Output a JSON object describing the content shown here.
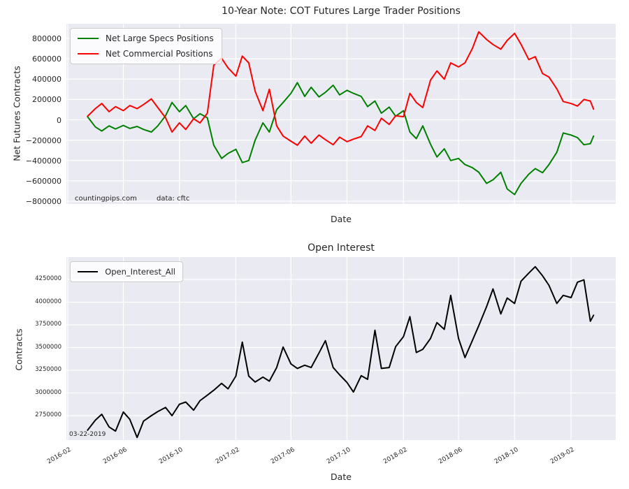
{
  "figure": {
    "background": "#ffffff",
    "plot_background": "#eaeaf2",
    "grid_color": "#ffffff",
    "text_color": "#262626"
  },
  "chart_data": [
    {
      "type": "line",
      "title": "10-Year Note: COT Futures Large Trader Positions",
      "xlabel": "Date",
      "ylabel": "Net Futures Contracts",
      "grid": true,
      "legend_position": "upper left",
      "ylim": [
        -824000,
        944000
      ],
      "xlim": [
        "2016-01-29",
        "2019-05-30"
      ],
      "annotations": [
        {
          "text": "countingpips.com"
        },
        {
          "text": "data: cftc"
        }
      ],
      "yticks": [
        {
          "value": 800000,
          "label": "800000"
        },
        {
          "value": 600000,
          "label": "600000"
        },
        {
          "value": 400000,
          "label": "400000"
        },
        {
          "value": 200000,
          "label": "200000"
        },
        {
          "value": 0,
          "label": "0"
        },
        {
          "value": -200000,
          "label": "−200000"
        },
        {
          "value": -400000,
          "label": "−400000"
        },
        {
          "value": -600000,
          "label": "−600000"
        },
        {
          "value": -800000,
          "label": "−800000"
        }
      ],
      "xticks": [
        {
          "date": "2016-02-01",
          "label": "2016-02"
        },
        {
          "date": "2016-06-01",
          "label": "2016-06"
        },
        {
          "date": "2016-10-01",
          "label": "2016-10"
        },
        {
          "date": "2017-02-01",
          "label": "2017-02"
        },
        {
          "date": "2017-06-01",
          "label": "2017-06"
        },
        {
          "date": "2017-10-01",
          "label": "2017-10"
        },
        {
          "date": "2018-02-01",
          "label": "2018-02"
        },
        {
          "date": "2018-06-01",
          "label": "2018-06"
        },
        {
          "date": "2018-10-01",
          "label": "2018-10"
        },
        {
          "date": "2019-02-01",
          "label": "2019-02"
        }
      ],
      "xtick_labels_visible": false,
      "x_dates": [
        "2016-03-15",
        "2016-04-01",
        "2016-04-15",
        "2016-05-01",
        "2016-05-15",
        "2016-06-01",
        "2016-06-15",
        "2016-07-01",
        "2016-07-15",
        "2016-08-01",
        "2016-08-15",
        "2016-09-01",
        "2016-09-15",
        "2016-10-01",
        "2016-10-15",
        "2016-11-01",
        "2016-11-15",
        "2016-12-01",
        "2016-12-15",
        "2017-01-01",
        "2017-01-15",
        "2017-02-01",
        "2017-02-15",
        "2017-03-01",
        "2017-03-15",
        "2017-04-01",
        "2017-04-15",
        "2017-05-01",
        "2017-05-15",
        "2017-06-01",
        "2017-06-15",
        "2017-07-01",
        "2017-07-15",
        "2017-08-01",
        "2017-08-15",
        "2017-09-01",
        "2017-09-15",
        "2017-10-01",
        "2017-10-15",
        "2017-11-01",
        "2017-11-15",
        "2017-12-01",
        "2017-12-15",
        "2018-01-01",
        "2018-01-15",
        "2018-02-01",
        "2018-02-15",
        "2018-03-01",
        "2018-03-15",
        "2018-04-01",
        "2018-04-15",
        "2018-05-01",
        "2018-05-15",
        "2018-06-01",
        "2018-06-15",
        "2018-07-01",
        "2018-07-15",
        "2018-08-01",
        "2018-08-15",
        "2018-09-01",
        "2018-09-15",
        "2018-10-01",
        "2018-10-15",
        "2018-11-01",
        "2018-11-15",
        "2018-12-01",
        "2018-12-15",
        "2019-01-01",
        "2019-01-15",
        "2019-02-01",
        "2019-02-15",
        "2019-03-01",
        "2019-03-15",
        "2019-03-22"
      ],
      "series": [
        {
          "name": "Net Large Specs Positions",
          "color": "#008000",
          "values": [
            30000,
            -70000,
            -110000,
            -60000,
            -90000,
            -55000,
            -85000,
            -65000,
            -95000,
            -120000,
            -60000,
            40000,
            170000,
            80000,
            140000,
            10000,
            60000,
            20000,
            -250000,
            -380000,
            -330000,
            -290000,
            -420000,
            -400000,
            -200000,
            -30000,
            -120000,
            100000,
            170000,
            260000,
            365000,
            230000,
            320000,
            225000,
            270000,
            340000,
            245000,
            290000,
            260000,
            230000,
            130000,
            185000,
            65000,
            125000,
            35000,
            90000,
            -120000,
            -185000,
            -60000,
            -240000,
            -365000,
            -285000,
            -400000,
            -380000,
            -440000,
            -470000,
            -515000,
            -625000,
            -590000,
            -516000,
            -680000,
            -735000,
            -625000,
            -535000,
            -480000,
            -520000,
            -440000,
            -320000,
            -130000,
            -150000,
            -175000,
            -245000,
            -235000,
            -160000
          ]
        },
        {
          "name": "Net Commercial Positions",
          "color": "#ff0000",
          "values": [
            35000,
            110000,
            160000,
            80000,
            130000,
            90000,
            140000,
            110000,
            150000,
            205000,
            120000,
            20000,
            -120000,
            -30000,
            -95000,
            10000,
            -30000,
            65000,
            537000,
            605000,
            510000,
            430000,
            626000,
            560000,
            280000,
            90000,
            300000,
            -60000,
            -160000,
            -210000,
            -250000,
            -160000,
            -230000,
            -150000,
            -195000,
            -245000,
            -170000,
            -215000,
            -190000,
            -165000,
            -60000,
            -105000,
            15000,
            -45000,
            40000,
            30000,
            260000,
            170000,
            120000,
            390000,
            480000,
            400000,
            560000,
            520000,
            560000,
            700000,
            865000,
            790000,
            740000,
            694000,
            780000,
            850000,
            742000,
            592000,
            620000,
            455000,
            420000,
            304000,
            180000,
            160000,
            135000,
            200000,
            185000,
            105000
          ]
        }
      ]
    },
    {
      "type": "line",
      "title": "Open Interest",
      "xlabel": "Date",
      "ylabel": "Contracts",
      "grid": true,
      "legend_position": "upper left",
      "ylim": [
        2466000,
        4495000
      ],
      "xlim": [
        "2016-01-29",
        "2019-05-30"
      ],
      "annotations": [
        {
          "text": "03-22-2019"
        }
      ],
      "yticks": [
        {
          "value": 4250000,
          "label": "4250000"
        },
        {
          "value": 4000000,
          "label": "4000000"
        },
        {
          "value": 3750000,
          "label": "3750000"
        },
        {
          "value": 3500000,
          "label": "3500000"
        },
        {
          "value": 3250000,
          "label": "3250000"
        },
        {
          "value": 3000000,
          "label": "3000000"
        },
        {
          "value": 2750000,
          "label": "2750000"
        }
      ],
      "xticks": [
        {
          "date": "2016-02-01",
          "label": "2016-02"
        },
        {
          "date": "2016-06-01",
          "label": "2016-06"
        },
        {
          "date": "2016-10-01",
          "label": "2016-10"
        },
        {
          "date": "2017-02-01",
          "label": "2017-02"
        },
        {
          "date": "2017-06-01",
          "label": "2017-06"
        },
        {
          "date": "2017-10-01",
          "label": "2017-10"
        },
        {
          "date": "2018-02-01",
          "label": "2018-02"
        },
        {
          "date": "2018-06-01",
          "label": "2018-06"
        },
        {
          "date": "2018-10-01",
          "label": "2018-10"
        },
        {
          "date": "2019-02-01",
          "label": "2019-02"
        }
      ],
      "xtick_labels_visible": true,
      "x_dates": [
        "2016-03-15",
        "2016-04-01",
        "2016-04-15",
        "2016-05-01",
        "2016-05-15",
        "2016-06-01",
        "2016-06-15",
        "2016-07-01",
        "2016-07-15",
        "2016-08-01",
        "2016-08-15",
        "2016-09-01",
        "2016-09-15",
        "2016-10-01",
        "2016-10-15",
        "2016-11-01",
        "2016-11-15",
        "2016-12-01",
        "2016-12-15",
        "2017-01-01",
        "2017-01-15",
        "2017-02-01",
        "2017-02-15",
        "2017-03-01",
        "2017-03-15",
        "2017-04-01",
        "2017-04-15",
        "2017-05-01",
        "2017-05-15",
        "2017-06-01",
        "2017-06-15",
        "2017-07-01",
        "2017-07-15",
        "2017-08-01",
        "2017-08-15",
        "2017-09-01",
        "2017-09-15",
        "2017-10-01",
        "2017-10-15",
        "2017-11-01",
        "2017-11-15",
        "2017-12-01",
        "2017-12-15",
        "2018-01-01",
        "2018-01-15",
        "2018-02-01",
        "2018-02-15",
        "2018-03-01",
        "2018-03-15",
        "2018-04-01",
        "2018-04-15",
        "2018-05-01",
        "2018-05-15",
        "2018-06-01",
        "2018-06-15",
        "2018-07-01",
        "2018-07-15",
        "2018-08-01",
        "2018-08-15",
        "2018-09-01",
        "2018-09-15",
        "2018-10-01",
        "2018-10-15",
        "2018-11-01",
        "2018-11-15",
        "2018-12-01",
        "2018-12-15",
        "2019-01-01",
        "2019-01-15",
        "2019-02-01",
        "2019-02-15",
        "2019-03-01",
        "2019-03-15",
        "2019-03-22"
      ],
      "series": [
        {
          "name": "Open_Interest_All",
          "color": "#000000",
          "values": [
            2590000,
            2700000,
            2765000,
            2625000,
            2580000,
            2790000,
            2710000,
            2510000,
            2690000,
            2750000,
            2795000,
            2840000,
            2750000,
            2875000,
            2900000,
            2810000,
            2915000,
            2975000,
            3030000,
            3105000,
            3045000,
            3185000,
            3560000,
            3185000,
            3120000,
            3175000,
            3130000,
            3280000,
            3505000,
            3320000,
            3270000,
            3305000,
            3280000,
            3440000,
            3575000,
            3280000,
            3200000,
            3115000,
            3010000,
            3190000,
            3150000,
            3690000,
            3270000,
            3280000,
            3510000,
            3620000,
            3840000,
            3445000,
            3480000,
            3600000,
            3775000,
            3700000,
            4075000,
            3600000,
            3390000,
            3575000,
            3740000,
            3950000,
            4145000,
            3870000,
            4045000,
            3985000,
            4230000,
            4320000,
            4390000,
            4290000,
            4185000,
            3985000,
            4075000,
            4050000,
            4220000,
            4245000,
            3790000,
            3855000
          ]
        }
      ]
    }
  ]
}
